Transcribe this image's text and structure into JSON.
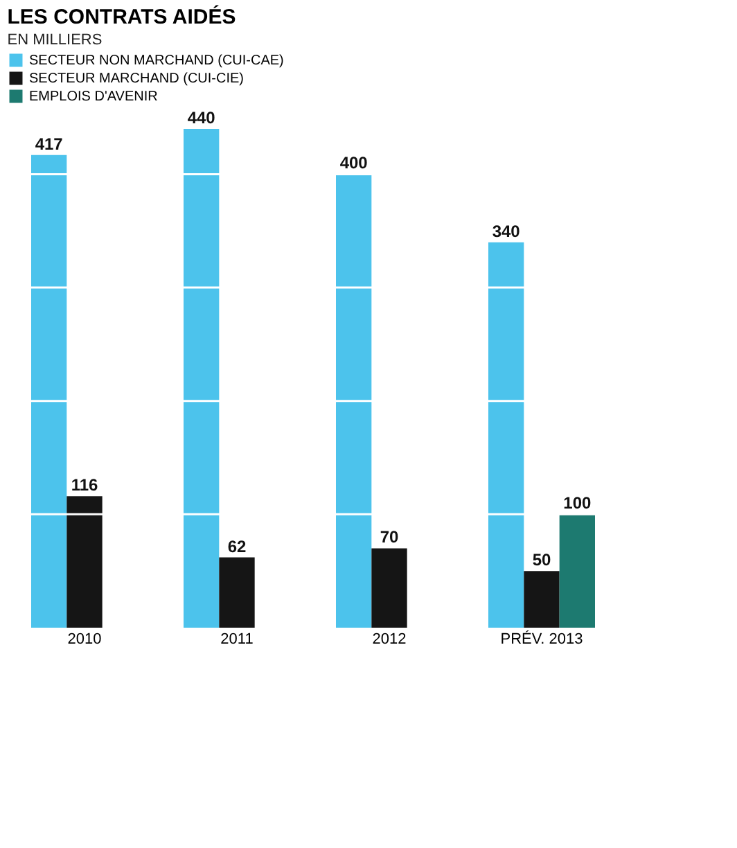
{
  "chart_data": {
    "type": "bar",
    "title": "LES CONTRATS AIDÉS",
    "subtitle": "EN MILLIERS",
    "categories": [
      "2010",
      "2011",
      "2012",
      "PRÉV. 2013"
    ],
    "series": [
      {
        "name": "SECTEUR NON MARCHAND (CUI-CAE)",
        "color": "#4cc3ec",
        "values": [
          417,
          440,
          400,
          340
        ]
      },
      {
        "name": "SECTEUR MARCHAND (CUI-CIE)",
        "color": "#151515",
        "values": [
          116,
          62,
          70,
          50
        ]
      },
      {
        "name": "EMPLOIS D'AVENIR",
        "color": "#1d7a70",
        "values": [
          null,
          null,
          null,
          100
        ]
      }
    ],
    "yticks": [
      {
        "value": 100,
        "label": null
      },
      {
        "value": 200,
        "label": null
      },
      {
        "value": 300,
        "label": null
      },
      {
        "value": 400,
        "label": null
      }
    ],
    "grid": "y",
    "tick_labels": "x",
    "data_labels": true,
    "legend": "top left"
  }
}
